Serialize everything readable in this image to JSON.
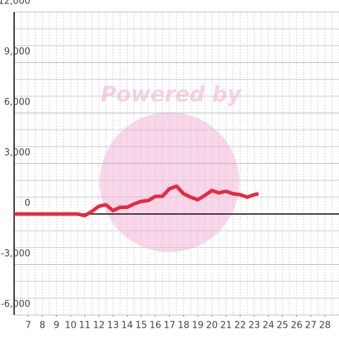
{
  "chart_data": {
    "type": "line",
    "watermark": "Powered by",
    "x": [
      6,
      7,
      8,
      9,
      10,
      10.5,
      11,
      11.5,
      12,
      12.5,
      13,
      13.5,
      14,
      14.5,
      15,
      15.5,
      16,
      16.5,
      17,
      17.5,
      18,
      18.5,
      19,
      19.5,
      20,
      20.5,
      21,
      21.5,
      22,
      22.5,
      23,
      23.3
    ],
    "series": [
      {
        "color": "#e8283f",
        "values": [
          0,
          0,
          0,
          0,
          0,
          0,
          -100,
          150,
          460,
          550,
          200,
          400,
          400,
          600,
          750,
          800,
          1050,
          1050,
          1500,
          1650,
          1200,
          1000,
          850,
          1100,
          1400,
          1250,
          1350,
          1200,
          1150,
          1000,
          1150,
          1200
        ]
      }
    ],
    "xlim": [
      6,
      29
    ],
    "xticks": [
      7,
      8,
      9,
      10,
      11,
      12,
      13,
      14,
      15,
      16,
      17,
      18,
      19,
      20,
      21,
      22,
      23,
      24,
      25,
      26,
      27,
      28
    ],
    "ylim": [
      -6000,
      12000
    ],
    "yticks": [
      {
        "value": -6000,
        "label": "-6,000"
      },
      {
        "value": -3000,
        "label": "-3,000"
      },
      0,
      {
        "value": 3000,
        "label": "3,000"
      },
      {
        "value": 6000,
        "label": "6,000"
      },
      {
        "value": 9000,
        "label": "9,000"
      },
      {
        "value": 12000,
        "label": "12,000"
      }
    ],
    "grid": true
  }
}
